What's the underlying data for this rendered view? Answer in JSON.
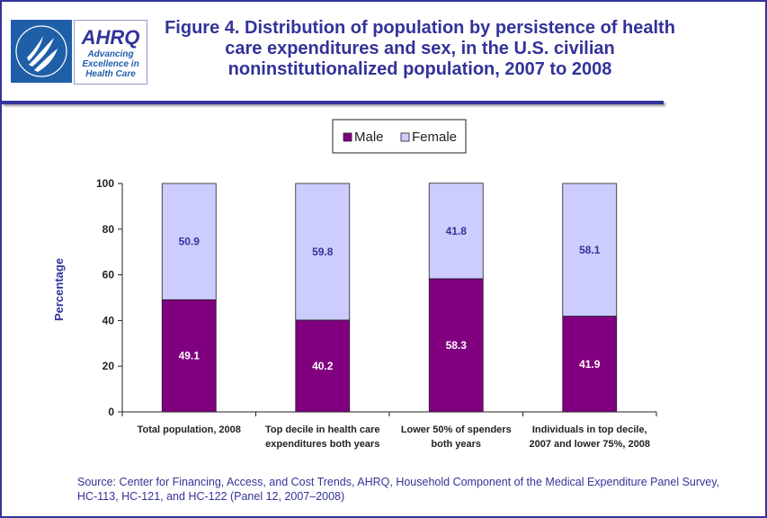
{
  "logo": {
    "name": "AHRQ",
    "tagline": "Advancing Excellence in Health Care"
  },
  "chart_data": {
    "type": "stacked_bar",
    "title": "Figure 4. Distribution of population by persistence of health care expenditures and sex, in the U.S. civilian noninstitutionalized population, 2007 to 2008",
    "y_label": "Percentage",
    "categories": [
      "Total population, 2008",
      "Top decile in health care expenditures both years",
      "Lower 50% of spenders both years",
      "Individuals in top decile, 2007 and lower 75%, 2008"
    ],
    "series": [
      {
        "name": "Male",
        "color": "#800080",
        "values": [
          49.1,
          40.2,
          58.3,
          41.9
        ]
      },
      {
        "name": "Female",
        "color": "#CCCCFF",
        "values": [
          50.9,
          59.8,
          41.8,
          58.1
        ]
      }
    ],
    "ylim": [
      0,
      100
    ],
    "yticks": [
      0,
      20,
      40,
      60,
      80,
      100
    ],
    "legend": "top",
    "source": "Source: Center for Financing, Access, and Cost Trends, AHRQ, Household Component of the Medical Expenditure Panel Survey, HC-113, HC-121, and HC-122 (Panel 12, 2007–2008)"
  }
}
